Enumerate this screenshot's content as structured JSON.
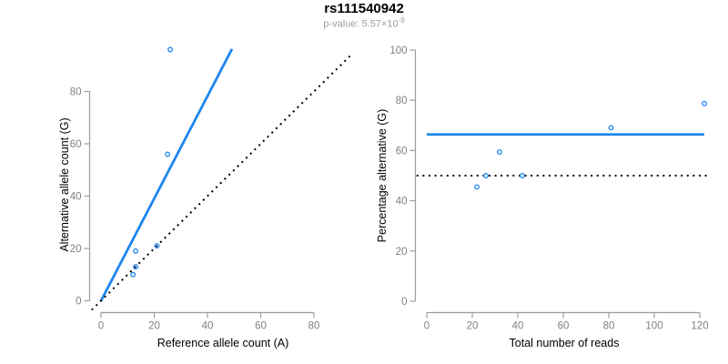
{
  "header": {
    "title": "rs111540942",
    "subtitle_base": "p-value: 5.57×10",
    "subtitle_exponent": "-9"
  },
  "colors": {
    "accent_blue": "#1E86EE",
    "axis_line_gray": "#9c9c9c",
    "tick_text_gray": "#808080",
    "subtitle_gray": "#9E9E9E",
    "title_black": "#000000"
  },
  "chart_data": [
    {
      "type": "scatter",
      "name": "allele-counts-scatter",
      "xlabel": "Reference allele count (A)",
      "ylabel": "Alternative allele count (G)",
      "xlim": [
        0,
        80
      ],
      "ylim": [
        0,
        96
      ],
      "x_ticks": [
        0,
        20,
        40,
        60,
        80
      ],
      "y_ticks": [
        0,
        20,
        40,
        60,
        80
      ],
      "grid": false,
      "legend": "none",
      "points": [
        [
          12,
          10
        ],
        [
          13,
          13
        ],
        [
          13,
          19
        ],
        [
          21,
          21
        ],
        [
          25,
          56
        ],
        [
          26,
          96
        ]
      ],
      "lines": [
        {
          "name": "fitted-ratio-line",
          "style": "solid",
          "color": "blue",
          "from": [
            0,
            0
          ],
          "to": [
            49.2,
            96.2
          ]
        },
        {
          "name": "identity-line",
          "style": "dotted",
          "color": "black",
          "from": [
            -3.5,
            -3.5
          ],
          "to": [
            94.5,
            94.5
          ]
        }
      ]
    },
    {
      "type": "scatter",
      "name": "percentage-vs-depth-scatter",
      "xlabel": "Total number of reads",
      "ylabel": "Percentage alternative (G)",
      "xlim": [
        0,
        120
      ],
      "ylim": [
        0,
        100
      ],
      "x_ticks": [
        0,
        20,
        40,
        60,
        80,
        100,
        120
      ],
      "y_ticks": [
        0,
        20,
        40,
        60,
        80,
        100
      ],
      "grid": false,
      "legend": "none",
      "points": [
        [
          22,
          45.5
        ],
        [
          26,
          50
        ],
        [
          32,
          59.4
        ],
        [
          42,
          50
        ],
        [
          81,
          69.1
        ],
        [
          122,
          78.7
        ]
      ],
      "lines": [
        {
          "name": "estimated-proportion-line",
          "style": "solid",
          "color": "blue",
          "from": [
            0,
            66.4
          ],
          "to": [
            122,
            66.4
          ]
        },
        {
          "name": "fifty-percent-line",
          "style": "dotted",
          "color": "black",
          "from": [
            -4.5,
            50
          ],
          "to": [
            124,
            50
          ]
        }
      ]
    }
  ]
}
